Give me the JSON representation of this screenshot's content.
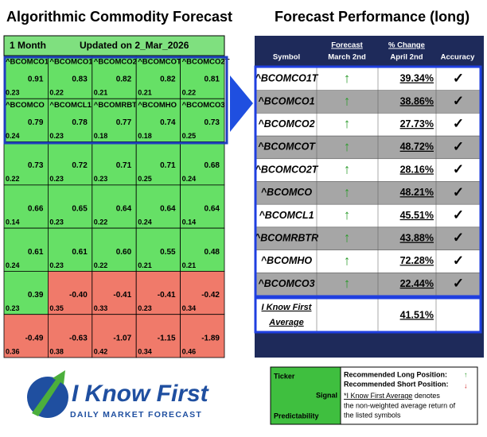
{
  "left": {
    "title": "Algorithmic Commodity Forecast",
    "period": "1 Month",
    "updated": "Updated on 2_Mar_2026",
    "rows": [
      [
        {
          "ticker": "^BCOMCO1T",
          "signal": "0.91",
          "predictability": "0.23"
        },
        {
          "ticker": "^BCOMCO1",
          "signal": "0.83",
          "predictability": "0.22"
        },
        {
          "ticker": "^BCOMCO2",
          "signal": "0.82",
          "predictability": "0.21"
        },
        {
          "ticker": "^BCOMCOT",
          "signal": "0.82",
          "predictability": "0.21"
        },
        {
          "ticker": "^BCOMCO2T",
          "signal": "0.81",
          "predictability": "0.22"
        }
      ],
      [
        {
          "ticker": "^BCOMCO",
          "signal": "0.79",
          "predictability": "0.24"
        },
        {
          "ticker": "^BCOMCL1",
          "signal": "0.78",
          "predictability": "0.23"
        },
        {
          "ticker": "^BCOMRBTR",
          "signal": "0.77",
          "predictability": "0.18"
        },
        {
          "ticker": "^BCOMHO",
          "signal": "0.74",
          "predictability": "0.18"
        },
        {
          "ticker": "^BCOMCO3",
          "signal": "0.73",
          "predictability": "0.25"
        }
      ],
      [
        {
          "signal": "0.73",
          "predictability": "0.22"
        },
        {
          "signal": "0.72",
          "predictability": "0.23"
        },
        {
          "signal": "0.71",
          "predictability": "0.23"
        },
        {
          "signal": "0.71",
          "predictability": "0.25"
        },
        {
          "signal": "0.68",
          "predictability": "0.24"
        }
      ],
      [
        {
          "signal": "0.66",
          "predictability": "0.14"
        },
        {
          "signal": "0.65",
          "predictability": "0.23"
        },
        {
          "signal": "0.64",
          "predictability": "0.22"
        },
        {
          "signal": "0.64",
          "predictability": "0.24"
        },
        {
          "signal": "0.64",
          "predictability": "0.14"
        }
      ],
      [
        {
          "signal": "0.61",
          "predictability": "0.24"
        },
        {
          "signal": "0.61",
          "predictability": "0.23"
        },
        {
          "signal": "0.60",
          "predictability": "0.22"
        },
        {
          "signal": "0.55",
          "predictability": "0.21"
        },
        {
          "signal": "0.48",
          "predictability": "0.21"
        }
      ],
      [
        {
          "signal": "0.39",
          "predictability": "0.23"
        },
        {
          "signal": "-0.40",
          "predictability": "0.35"
        },
        {
          "signal": "-0.41",
          "predictability": "0.33"
        },
        {
          "signal": "-0.41",
          "predictability": "0.23"
        },
        {
          "signal": "-0.42",
          "predictability": "0.34"
        }
      ],
      [
        {
          "signal": "-0.49",
          "predictability": "0.36"
        },
        {
          "signal": "-0.63",
          "predictability": "0.38"
        },
        {
          "signal": "-1.07",
          "predictability": "0.42"
        },
        {
          "signal": "-1.15",
          "predictability": "0.34"
        },
        {
          "signal": "-1.89",
          "predictability": "0.46"
        }
      ]
    ]
  },
  "right": {
    "title": "Forecast Performance (long)",
    "headers": {
      "symbol": "Symbol",
      "forecast": "Forecast",
      "forecast_date": "March 2nd",
      "change": "% Change",
      "change_date": "April 2nd",
      "accuracy": "Accuracy"
    },
    "rows": [
      {
        "symbol": "^BCOMCO1T",
        "change": "39.34%"
      },
      {
        "symbol": "^BCOMCO1",
        "change": "38.86%"
      },
      {
        "symbol": "^BCOMCO2",
        "change": "27.73%"
      },
      {
        "symbol": "^BCOMCOT",
        "change": "48.72%"
      },
      {
        "symbol": "^BCOMCO2T",
        "change": "28.16%"
      },
      {
        "symbol": "^BCOMCO",
        "change": "48.21%"
      },
      {
        "symbol": "^BCOMCL1",
        "change": "45.51%"
      },
      {
        "symbol": "^BCOMRBTR",
        "change": "43.88%"
      },
      {
        "symbol": "^BCOMHO",
        "change": "72.28%"
      },
      {
        "symbol": "^BCOMCO3",
        "change": "22.44%"
      }
    ],
    "average": {
      "label_1": "I Know First",
      "label_2": "Average",
      "change": "41.51%"
    }
  },
  "logo": {
    "name": "I Know First",
    "tagline": "DAILY MARKET FORECAST"
  },
  "legend": {
    "ticker": "Ticker",
    "signal": "Signal",
    "predictability": "Predictability",
    "long": "Recommended Long Position:",
    "short": "Recommended Short Position:",
    "note_link": "*I Know First Average",
    "note_1": " denotes",
    "note_2": "the non-weighted average return of",
    "note_3": "the listed symbols"
  }
}
